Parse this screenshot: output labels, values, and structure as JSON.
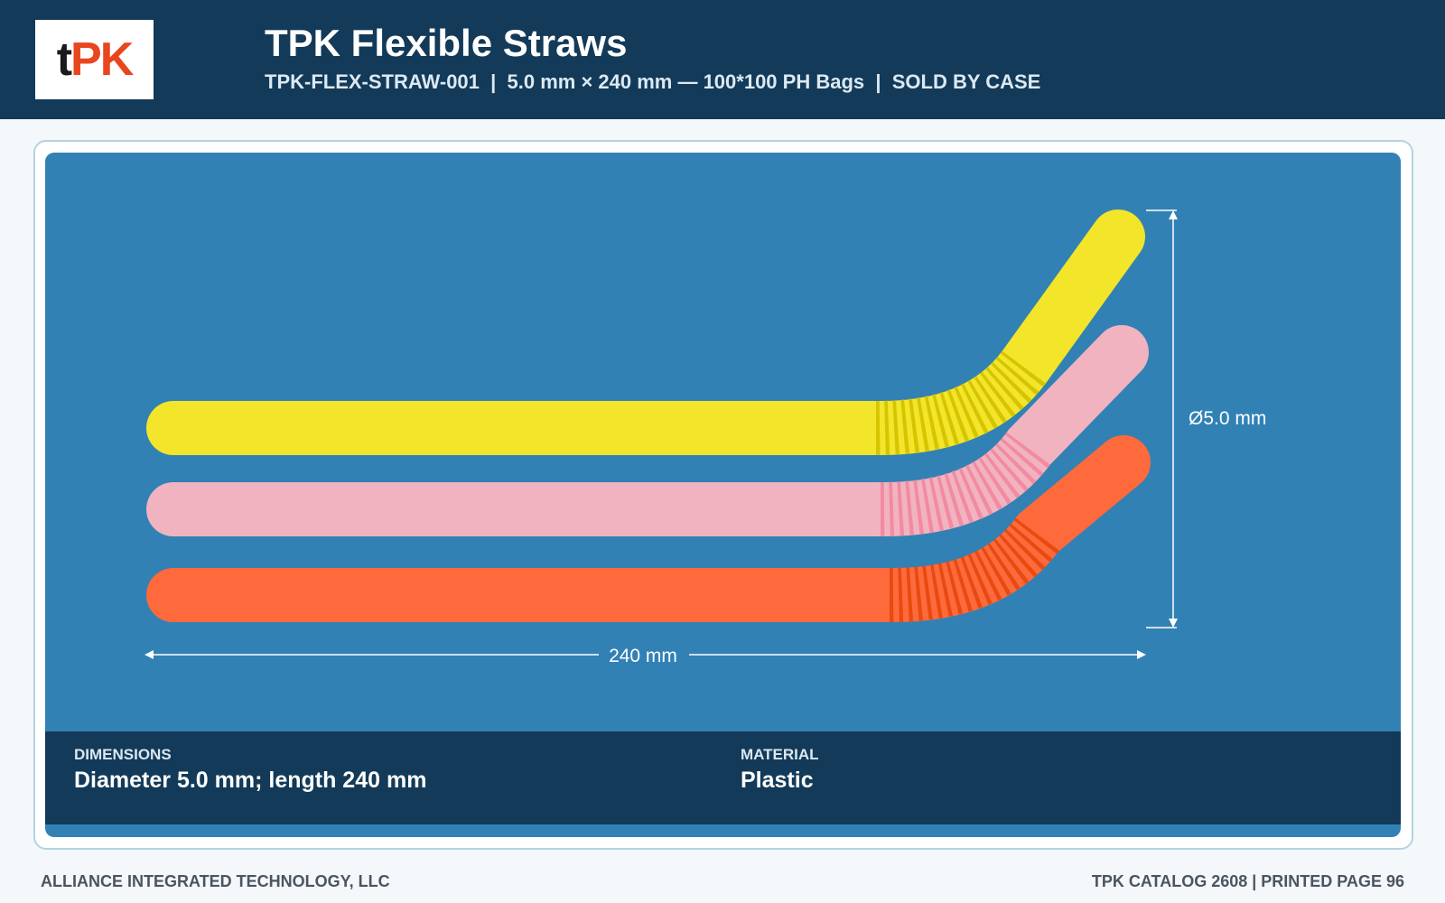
{
  "header": {
    "logo": [
      "t",
      "PK"
    ],
    "title": "TPK Flexible Straws",
    "subtitle": "TPK-FLEX-STRAW-001  |  5.0 mm × 240 mm — 100*100 PH Bags  |  SOLD BY CASE"
  },
  "image": {
    "diameter_label": "Ø5.0 mm",
    "length_label": "240 mm"
  },
  "specs": [
    {
      "label": "DIMENSIONS",
      "value": "Diameter 5.0 mm; length 240 mm"
    },
    {
      "label": "MATERIAL",
      "value": "Plastic"
    }
  ],
  "footer": {
    "left": "ALLIANCE INTEGRATED TECHNOLOGY, LLC",
    "right": "TPK CATALOG 2608 | PRINTED PAGE 96"
  }
}
